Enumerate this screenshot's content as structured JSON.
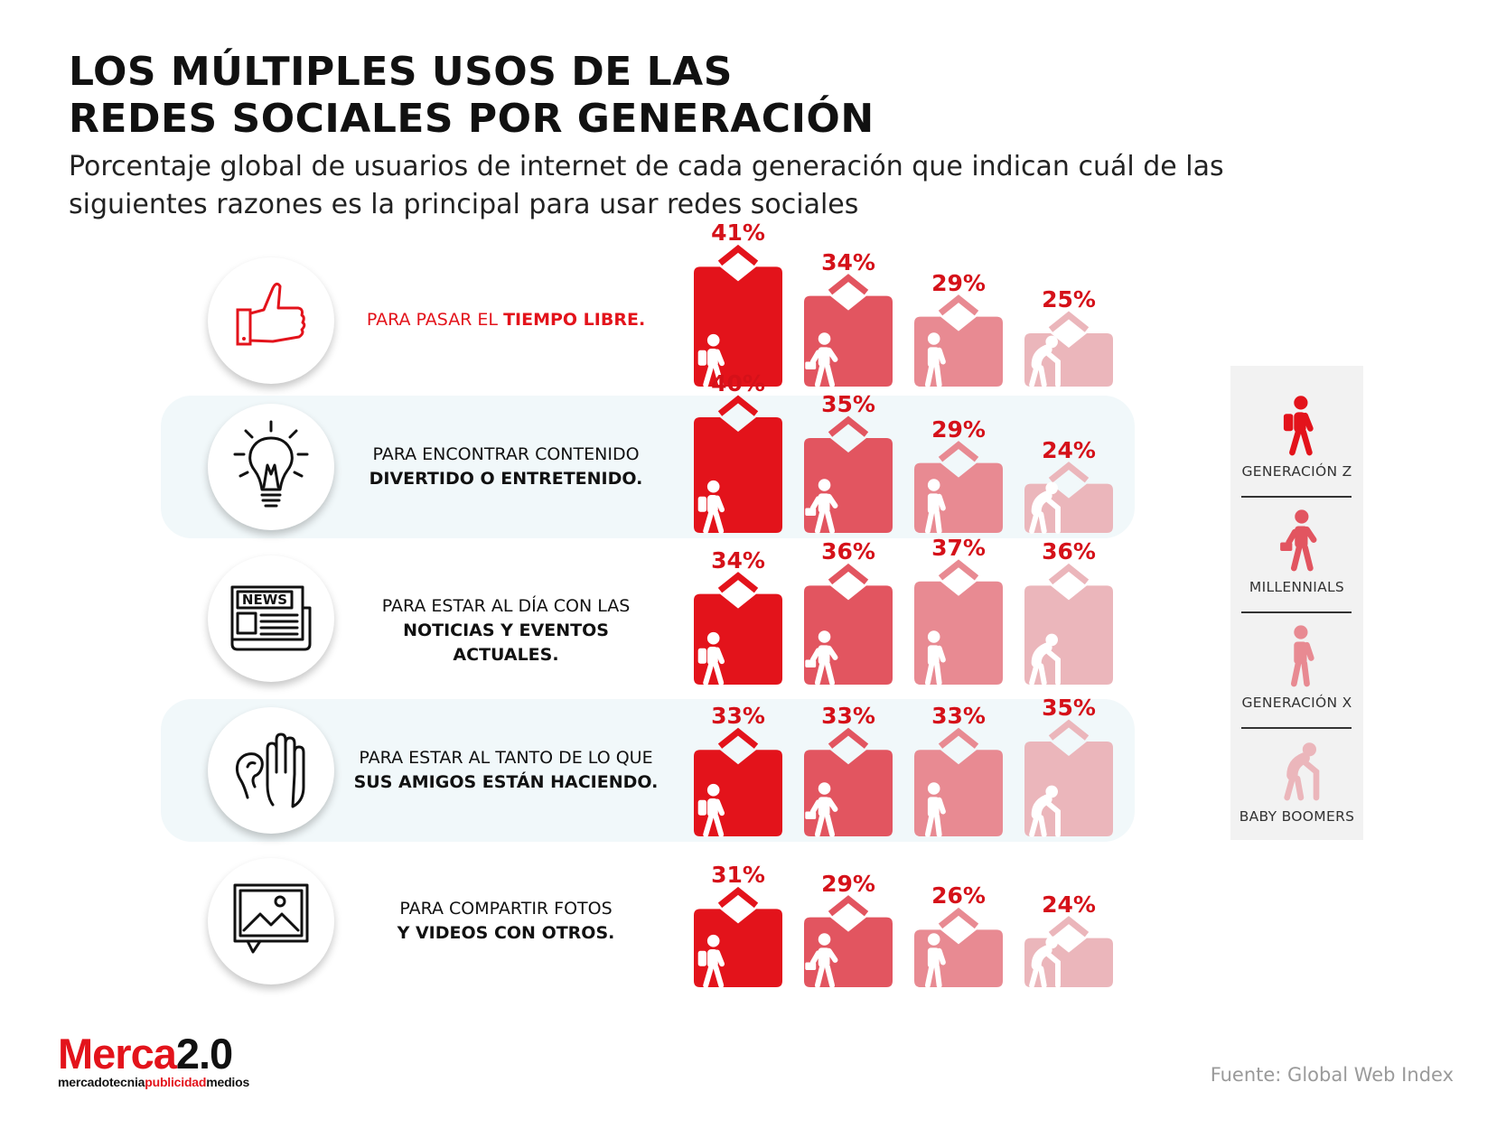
{
  "header": {
    "title_line1": "LOS MÚLTIPLES USOS DE LAS",
    "title_line2": "REDES SOCIALES POR GENERACIÓN",
    "subtitle": "Porcentaje global de usuarios de internet de cada generación que indican cuál de las siguientes razones es la principal para usar redes sociales"
  },
  "rows": [
    {
      "line1": "PARA PASAR EL ",
      "line1_bold": "TIEMPO LIBRE.",
      "line2": "",
      "icon": "thumbs-up-icon"
    },
    {
      "line1": "PARA ENCONTRAR CONTENIDO",
      "line1_bold": "",
      "line2": "DIVERTIDO O ENTRETENIDO.",
      "icon": "lightbulb-icon"
    },
    {
      "line1": "PARA ESTAR AL DÍA CON LAS",
      "line1_bold": "",
      "line2": "NOTICIAS Y EVENTOS ACTUALES.",
      "icon": "newspaper-icon",
      "icon_text": "NEWS"
    },
    {
      "line1": "PARA ESTAR AL TANTO DE LO QUE",
      "line1_bold": "",
      "line2": "SUS AMIGOS ESTÁN HACIENDO.",
      "icon": "ear-hand-icon"
    },
    {
      "line1": "PARA COMPARTIR FOTOS",
      "line1_bold": "",
      "line2": "Y VIDEOS CON OTROS.",
      "icon": "photo-message-icon"
    }
  ],
  "legend": [
    {
      "label": "GENERACIÓN Z",
      "icon": "backpack-walker-icon"
    },
    {
      "label": "MILLENNIALS",
      "icon": "briefcase-walker-icon"
    },
    {
      "label": "GENERACIÓN X",
      "icon": "walker-icon"
    },
    {
      "label": "BABY BOOMERS",
      "icon": "cane-walker-icon"
    }
  ],
  "colors": {
    "accent": "#e3131b",
    "gen_z": "#e3131b",
    "millennials": "#e25560",
    "gen_x": "#e88a92",
    "baby_boomers": "#ebb6bb"
  },
  "chart_data": {
    "type": "bar",
    "categories": [
      "PARA PASAR EL TIEMPO LIBRE.",
      "PARA ENCONTRAR CONTENIDO DIVERTIDO O ENTRETENIDO.",
      "PARA ESTAR AL DÍA CON LAS NOTICIAS Y EVENTOS ACTUALES.",
      "PARA ESTAR AL TANTO DE LO QUE SUS AMIGOS ESTÁN HACIENDO.",
      "PARA COMPARTIR FOTOS Y VIDEOS CON OTROS."
    ],
    "series": [
      {
        "name": "GENERACIÓN Z",
        "values": [
          41,
          40,
          34,
          33,
          31
        ]
      },
      {
        "name": "MILLENNIALS",
        "values": [
          34,
          35,
          36,
          33,
          29
        ]
      },
      {
        "name": "GENERACIÓN X",
        "values": [
          29,
          29,
          37,
          33,
          26
        ]
      },
      {
        "name": "BABY BOOMERS",
        "values": [
          25,
          24,
          36,
          35,
          24
        ]
      }
    ],
    "unit": "%",
    "legend_position": "right"
  },
  "footer": {
    "logo_merca": "Merca",
    "logo_version": "2.0",
    "logo_sub_1": "mercadotecnia",
    "logo_sub_2": "publicidad",
    "logo_sub_3": "medios",
    "source": "Fuente:  Global Web Index"
  }
}
